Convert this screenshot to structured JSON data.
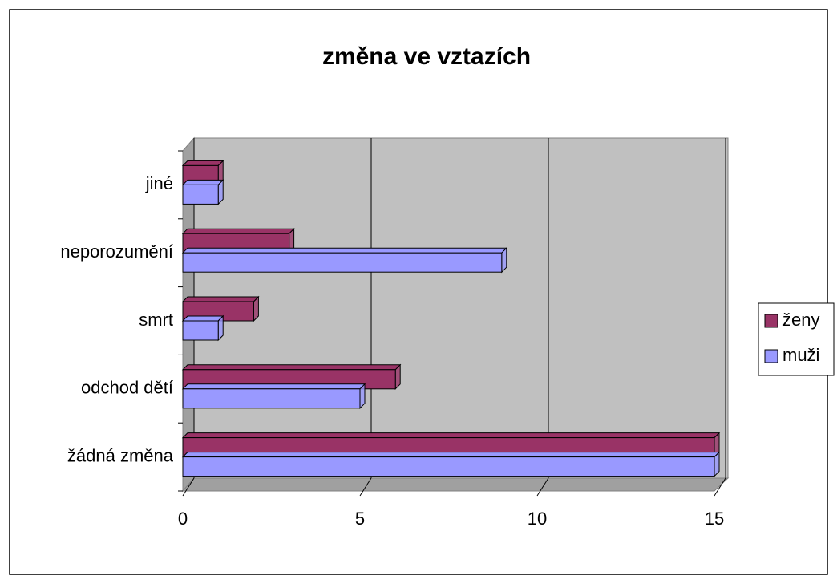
{
  "chart_data": {
    "type": "bar",
    "orientation": "horizontal",
    "title": "změna ve vztazích",
    "categories": [
      "žádná změna",
      "odchod dětí",
      "smrt",
      "neporozumění",
      "jiné"
    ],
    "series": [
      {
        "name": "ženy",
        "color": "#993366",
        "values": [
          15,
          6,
          2,
          3,
          1
        ]
      },
      {
        "name": "muži",
        "color": "#9999ff",
        "values": [
          15,
          5,
          1,
          9,
          1
        ]
      }
    ],
    "xlim": [
      0,
      15
    ],
    "xticks": [
      0,
      5,
      10,
      15
    ],
    "grid": true,
    "legend": "right"
  }
}
